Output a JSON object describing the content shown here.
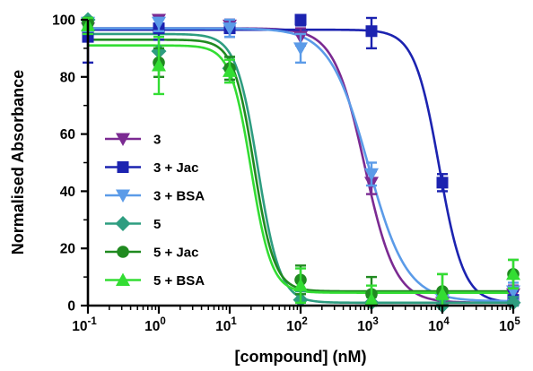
{
  "chart_data": {
    "type": "scatter",
    "title": "",
    "xlabel": "[compound] (nM)",
    "ylabel": "Normalised Absorbance",
    "xscale": "log",
    "xlim": [
      0.1,
      100000
    ],
    "ylim": [
      0,
      100
    ],
    "grid": false,
    "legend_position": "lower-left",
    "x_ticks": [
      {
        "base": "10",
        "exp": "-1"
      },
      {
        "base": "10",
        "exp": "0"
      },
      {
        "base": "10",
        "exp": "1"
      },
      {
        "base": "10",
        "exp": "2"
      },
      {
        "base": "10",
        "exp": "3"
      },
      {
        "base": "10",
        "exp": "4"
      },
      {
        "base": "10",
        "exp": "5"
      }
    ],
    "y_ticks": [
      "0",
      "20",
      "40",
      "60",
      "80",
      "100"
    ],
    "series": [
      {
        "name": "3",
        "color": "#7b2a92",
        "marker": "triangle-down",
        "x": [
          0.1,
          1,
          10,
          100,
          1000,
          10000,
          100000
        ],
        "y": [
          97,
          100,
          98,
          94,
          43,
          1,
          4
        ],
        "err": [
          3,
          2,
          2,
          3,
          4,
          2,
          3
        ],
        "fit": {
          "top": 97,
          "bottom": 1,
          "ic50": 800,
          "hill": 2.0
        }
      },
      {
        "name": "3 + Jac",
        "color": "#1c23b0",
        "marker": "square",
        "x": [
          0.1,
          1,
          10,
          100,
          1000,
          10000,
          100000
        ],
        "y": [
          94,
          97,
          97,
          100,
          96,
          43,
          2
        ],
        "err": [
          9,
          4,
          3,
          2,
          6,
          3,
          3
        ],
        "fit": {
          "top": 96.5,
          "bottom": 1,
          "ic50": 9000,
          "hill": 2.5
        }
      },
      {
        "name": "3 + BSA",
        "color": "#5b9be8",
        "marker": "triangle-down",
        "x": [
          0.1,
          1,
          10,
          100,
          1000,
          10000,
          100000
        ],
        "y": [
          99,
          99,
          97,
          90,
          46,
          2,
          5
        ],
        "err": [
          3,
          3,
          3,
          5,
          4,
          2,
          3
        ],
        "fit": {
          "top": 97,
          "bottom": 1.5,
          "ic50": 900,
          "hill": 1.6
        }
      },
      {
        "name": "5",
        "color": "#2e9d80",
        "marker": "diamond",
        "x": [
          0.1,
          1,
          10,
          100,
          1000,
          10000,
          100000
        ],
        "y": [
          100,
          89,
          83,
          2,
          1,
          0,
          1
        ],
        "err": [
          2,
          5,
          4,
          3,
          2,
          2,
          2
        ],
        "fit": {
          "top": 95,
          "bottom": 1,
          "ic50": 25,
          "hill": 2.8
        }
      },
      {
        "name": "5 + Jac",
        "color": "#208a20",
        "marker": "circle",
        "x": [
          0.1,
          1,
          10,
          100,
          1000,
          10000,
          100000
        ],
        "y": [
          99,
          85,
          83,
          9,
          4,
          5,
          11
        ],
        "err": [
          2,
          5,
          4,
          5,
          6,
          6,
          5
        ],
        "fit": {
          "top": 93,
          "bottom": 5,
          "ic50": 22,
          "hill": 3.0
        }
      },
      {
        "name": "5 + BSA",
        "color": "#33dd33",
        "marker": "triangle-up",
        "x": [
          0.1,
          1,
          10,
          100,
          1000,
          10000,
          100000
        ],
        "y": [
          98,
          84,
          82,
          7,
          2,
          4,
          11
        ],
        "err": [
          3,
          10,
          4,
          6,
          5,
          7,
          5
        ],
        "fit": {
          "top": 91,
          "bottom": 4.5,
          "ic50": 20,
          "hill": 3.0
        }
      }
    ]
  }
}
